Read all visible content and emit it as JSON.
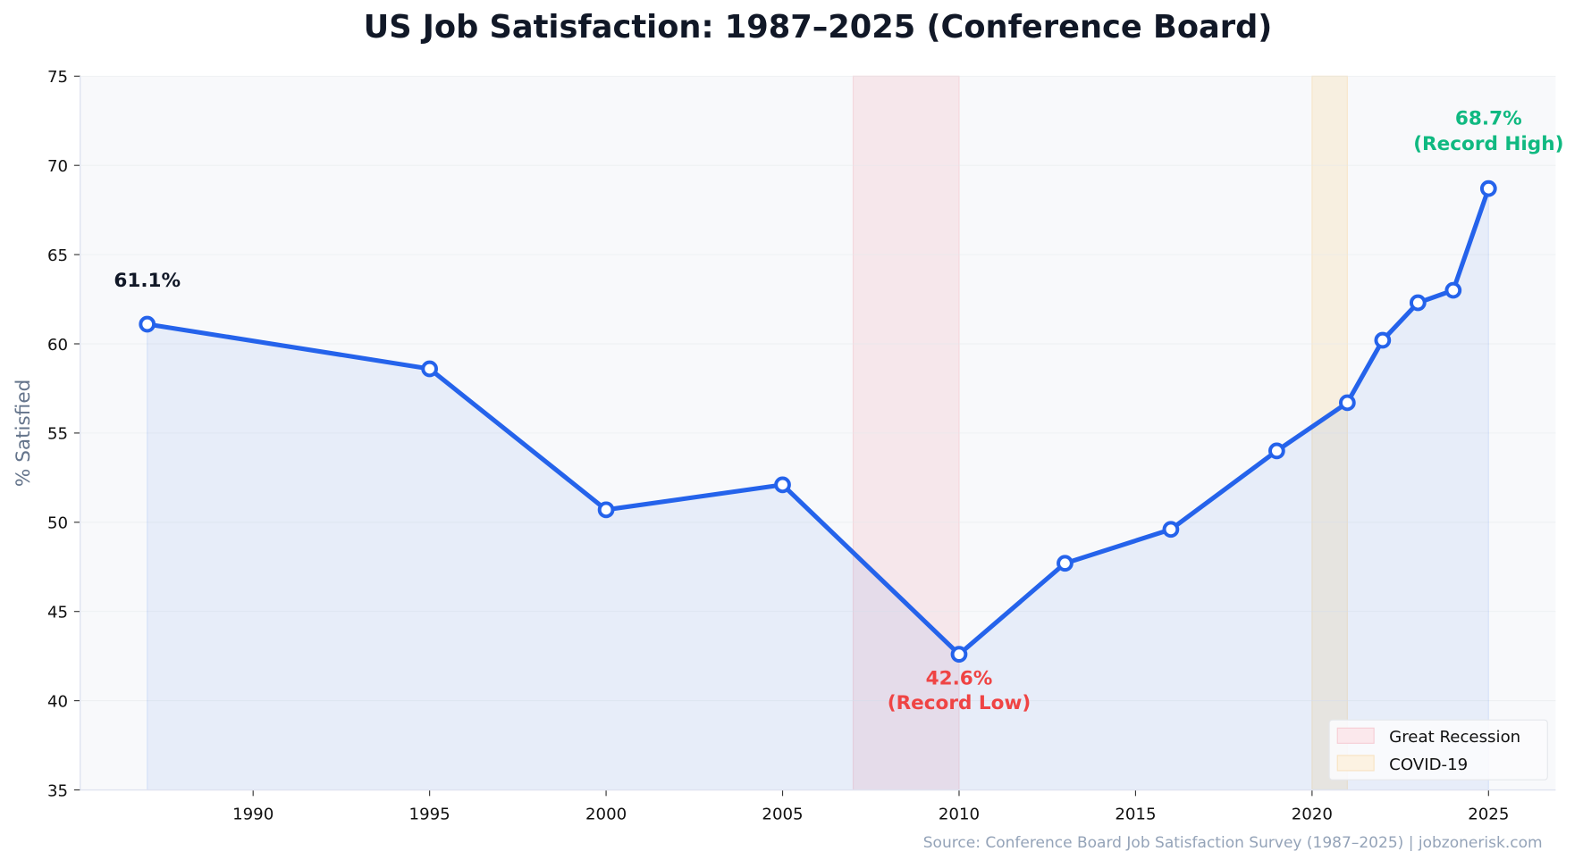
{
  "chart_data": {
    "type": "line",
    "title": "US Job Satisfaction: 1987–2025 (Conference Board)",
    "xlabel": "",
    "ylabel": "% Satisfied",
    "x": [
      1987,
      1995,
      2000,
      2005,
      2010,
      2013,
      2016,
      2019,
      2021,
      2022,
      2023,
      2024,
      2025
    ],
    "series": [
      {
        "values": [
          61.1,
          58.6,
          50.7,
          52.1,
          42.6,
          47.7,
          49.6,
          54.0,
          56.7,
          60.2,
          62.3,
          63.0,
          68.7
        ]
      }
    ],
    "xlim": [
      1985.1,
      2026.9
    ],
    "ylim": [
      35,
      75
    ],
    "xticks": [
      "1990",
      "1995",
      "2000",
      "2005",
      "2010",
      "2015",
      "2020",
      "2025"
    ],
    "yticks": [
      "35",
      "40",
      "45",
      "50",
      "55",
      "60",
      "65",
      "70",
      "75"
    ],
    "grid": true,
    "legend_position": "bottom-right",
    "shaded_periods": [
      {
        "name": "Great Recession",
        "start": 2007,
        "end": 2010,
        "color": "#f4c6cf"
      },
      {
        "name": "COVID-19",
        "start": 2020,
        "end": 2021,
        "color": "#f7deb0"
      }
    ],
    "annotations": [
      {
        "x": 1987,
        "y": 61.1,
        "text": "61.1%",
        "color": "#111827"
      },
      {
        "x": 2010,
        "y": 42.6,
        "text": "42.6%",
        "text2": "(Record Low)",
        "color": "#ef4444"
      },
      {
        "x": 2025,
        "y": 68.7,
        "text": "68.7%",
        "text2": "(Record High)",
        "color": "#10b981"
      }
    ],
    "line_color": "#2563eb",
    "source": "Source: Conference Board Job Satisfaction Survey (1987–2025) | jobzonerisk.com"
  }
}
